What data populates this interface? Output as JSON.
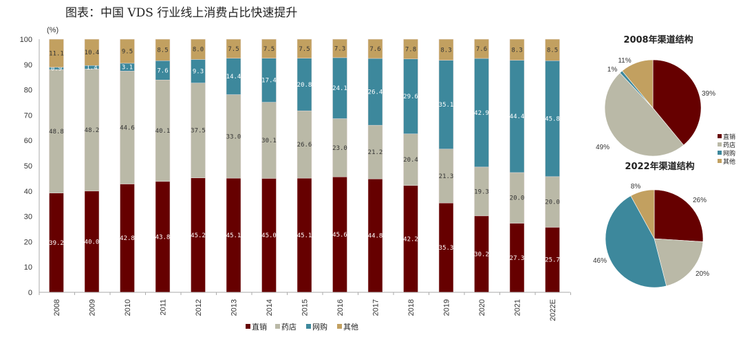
{
  "title": "图表：中国 VDS 行业线上消费占比快速提升",
  "chart_data": [
    {
      "type": "bar",
      "stacked": true,
      "unit_label": "(%)",
      "ylim": [
        0,
        100
      ],
      "yticks": [
        "0",
        "10",
        "20",
        "30",
        "40",
        "50",
        "60",
        "70",
        "80",
        "90",
        "100"
      ],
      "categories": [
        "2008",
        "2009",
        "2010",
        "2011",
        "2012",
        "2013",
        "2014",
        "2015",
        "2016",
        "2017",
        "2018",
        "2019",
        "2020",
        "2021",
        "2022E"
      ],
      "series": [
        {
          "name": "直销",
          "color": "#660000",
          "label_color": "#ffffff",
          "values": [
            39.2,
            40.0,
            42.8,
            43.8,
            45.2,
            45.1,
            45.0,
            45.1,
            45.6,
            44.8,
            42.2,
            35.3,
            30.2,
            27.3,
            25.7
          ],
          "labels": [
            "39.2",
            "40.0",
            "42.8",
            "43.8",
            "45.2",
            "45.1",
            "45.0",
            "45.1",
            "45.6",
            "44.8",
            "42.2",
            "35.3",
            "30.2",
            "27.3",
            "25.7"
          ]
        },
        {
          "name": "药店",
          "color": "#bab9a7",
          "label_color": "#333333",
          "values": [
            48.8,
            48.2,
            44.6,
            40.1,
            37.5,
            33.0,
            30.1,
            26.6,
            23.0,
            21.2,
            20.4,
            21.3,
            19.3,
            20.0,
            20.0
          ],
          "labels": [
            "48.8",
            "48.2",
            "44.6",
            "40.1",
            "37.5",
            "33.0",
            "30.1",
            "26.6",
            "23.0",
            "21.2",
            "20.4",
            "21.3",
            "19.3",
            "20.0",
            "20.0"
          ]
        },
        {
          "name": "网购",
          "color": "#3d889c",
          "label_color": "#ffffff",
          "values": [
            0.9,
            1.4,
            3.1,
            7.6,
            9.3,
            14.4,
            17.4,
            20.8,
            24.1,
            26.4,
            29.6,
            35.1,
            42.9,
            44.4,
            45.8
          ],
          "labels": [
            "0.9",
            "1.4",
            "3.1",
            "7.6",
            "9.3",
            "14.4",
            "17.4",
            "20.8",
            "24.1",
            "26.4",
            "29.6",
            "35.1",
            "42.9",
            "44.4",
            "45.8"
          ]
        },
        {
          "name": "其他",
          "color": "#c2a060",
          "label_color": "#333333",
          "values": [
            11.1,
            10.4,
            9.5,
            8.5,
            8.0,
            7.5,
            7.5,
            7.5,
            7.3,
            7.6,
            7.8,
            8.3,
            7.6,
            8.3,
            8.5
          ],
          "labels": [
            "11.1",
            "10.4",
            "9.5",
            "8.5",
            "8.0",
            "7.5",
            "7.5",
            "7.5",
            "7.3",
            "7.6",
            "7.8",
            "8.3",
            "7.6",
            "8.3",
            "8.5"
          ]
        }
      ],
      "legend": [
        "直销",
        "药店",
        "网购",
        "其他"
      ],
      "legend_position": "bottom"
    },
    {
      "type": "pie",
      "title": "2008年渠道结构",
      "slices": [
        {
          "name": "直销",
          "value": 39,
          "label": "39%",
          "color": "#660000"
        },
        {
          "name": "药店",
          "value": 49,
          "label": "49%",
          "color": "#bab9a7"
        },
        {
          "name": "网购",
          "value": 1,
          "label": "1%",
          "color": "#3d889c"
        },
        {
          "name": "其他",
          "value": 11,
          "label": "11%",
          "color": "#c2a060"
        }
      ],
      "legend": [
        "直销",
        "药店",
        "网购",
        "其他"
      ],
      "legend_position": "right"
    },
    {
      "type": "pie",
      "title": "2022年渠道结构",
      "slices": [
        {
          "name": "直销",
          "value": 26,
          "label": "26%",
          "color": "#660000"
        },
        {
          "name": "药店",
          "value": 20,
          "label": "20%",
          "color": "#bab9a7"
        },
        {
          "name": "网购",
          "value": 46,
          "label": "46%",
          "color": "#3d889c"
        },
        {
          "name": "其他",
          "value": 8,
          "label": "8%",
          "color": "#c2a060"
        }
      ]
    }
  ]
}
